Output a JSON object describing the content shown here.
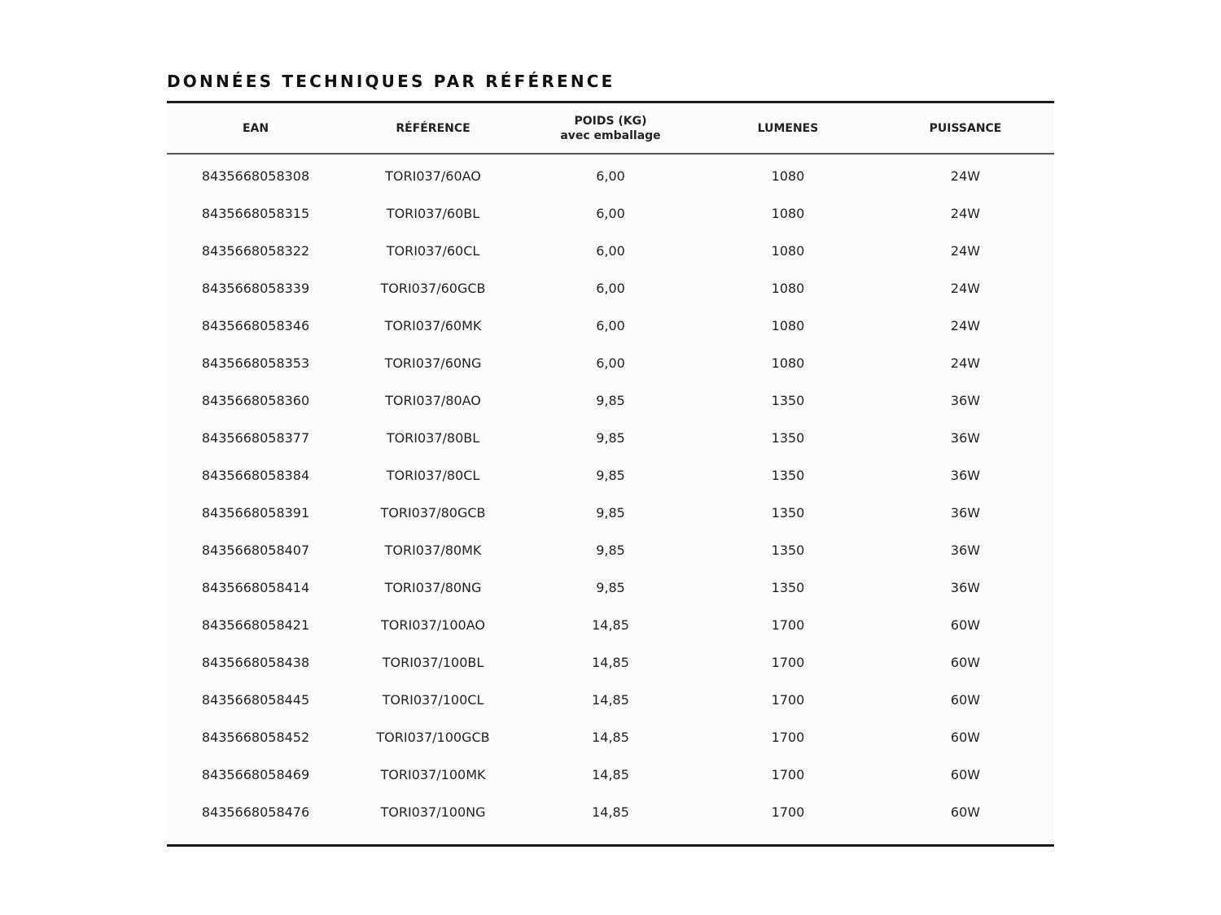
{
  "title": "DONNÉES TECHNIQUES PAR RÉFÉRENCE",
  "headers": {
    "ean": "EAN",
    "reference": "RÉFÉRENCE",
    "poids": "POIDS (KG)",
    "poids_sub": "avec emballage",
    "lumenes": "LUMENES",
    "puissance": "PUISSANCE"
  },
  "rows": [
    [
      "8435668058308",
      "TORI037/60AO",
      "6,00",
      "1080",
      "24W"
    ],
    [
      "8435668058315",
      "TORI037/60BL",
      "6,00",
      "1080",
      "24W"
    ],
    [
      "8435668058322",
      "TORI037/60CL",
      "6,00",
      "1080",
      "24W"
    ],
    [
      "8435668058339",
      "TORI037/60GCB",
      "6,00",
      "1080",
      "24W"
    ],
    [
      "8435668058346",
      "TORI037/60MK",
      "6,00",
      "1080",
      "24W"
    ],
    [
      "8435668058353",
      "TORI037/60NG",
      "6,00",
      "1080",
      "24W"
    ],
    [
      "8435668058360",
      "TORI037/80AO",
      "9,85",
      "1350",
      "36W"
    ],
    [
      "8435668058377",
      "TORI037/80BL",
      "9,85",
      "1350",
      "36W"
    ],
    [
      "8435668058384",
      "TORI037/80CL",
      "9,85",
      "1350",
      "36W"
    ],
    [
      "8435668058391",
      "TORI037/80GCB",
      "9,85",
      "1350",
      "36W"
    ],
    [
      "8435668058407",
      "TORI037/80MK",
      "9,85",
      "1350",
      "36W"
    ],
    [
      "8435668058414",
      "TORI037/80NG",
      "9,85",
      "1350",
      "36W"
    ],
    [
      "8435668058421",
      "TORI037/100AO",
      "14,85",
      "1700",
      "60W"
    ],
    [
      "8435668058438",
      "TORI037/100BL",
      "14,85",
      "1700",
      "60W"
    ],
    [
      "8435668058445",
      "TORI037/100CL",
      "14,85",
      "1700",
      "60W"
    ],
    [
      "8435668058452",
      "TORI037/100GCB",
      "14,85",
      "1700",
      "60W"
    ],
    [
      "8435668058469",
      "TORI037/100MK",
      "14,85",
      "1700",
      "60W"
    ],
    [
      "8435668058476",
      "TORI037/100NG",
      "14,85",
      "1700",
      "60W"
    ]
  ]
}
